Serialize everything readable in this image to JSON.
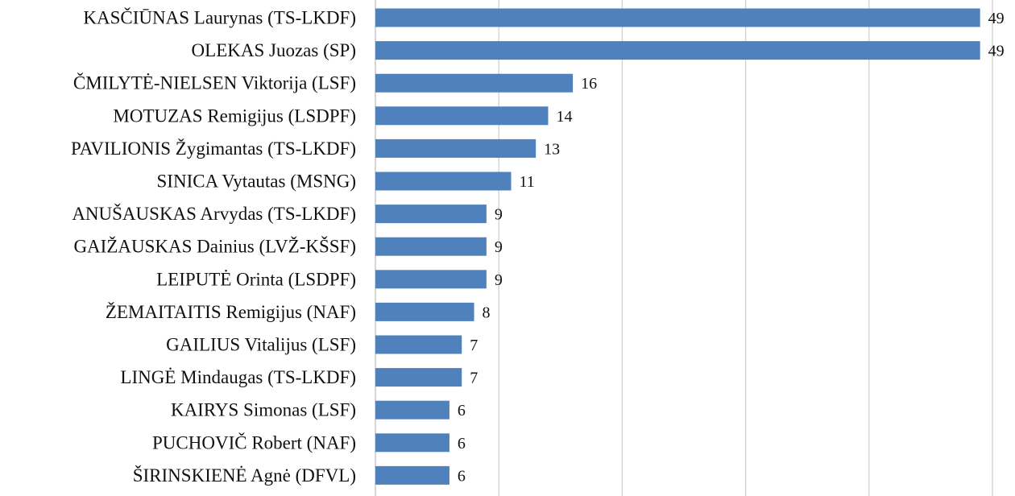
{
  "chart_data": {
    "type": "bar",
    "orientation": "horizontal",
    "categories": [
      "KASČIŪNAS Laurynas (TS-LKDF)",
      "OLEKAS Juozas (SP)",
      "ČMILYTĖ-NIELSEN Viktorija (LSF)",
      "MOTUZAS Remigijus (LSDPF)",
      "PAVILIONIS Žygimantas (TS-LKDF)",
      "SINICA Vytautas (MSNG)",
      "ANUŠAUSKAS Arvydas (TS-LKDF)",
      "GAIŽAUSKAS Dainius (LVŽ-KŠSF)",
      "LEIPUTĖ Orinta (LSDPF)",
      "ŽEMAITAITIS Remigijus (NAF)",
      "GAILIUS Vitalijus (LSF)",
      "LINGĖ Mindaugas (TS-LKDF)",
      "KAIRYS Simonas (LSF)",
      "PUCHOVIČ Robert (NAF)",
      "ŠIRINSKIENĖ Agnė (DFVL)"
    ],
    "values": [
      49,
      49,
      16,
      14,
      13,
      11,
      9,
      9,
      9,
      8,
      7,
      7,
      6,
      6,
      6
    ],
    "data_labels": [
      "49",
      "49",
      "16",
      "14",
      "13",
      "11",
      "9",
      "9",
      "9",
      "8",
      "7",
      "7",
      "6",
      "6",
      "6"
    ],
    "xlim": [
      0,
      50
    ],
    "x_gridlines": [
      0,
      10,
      20,
      30,
      40,
      50
    ],
    "tick_labels_shown": false,
    "grid": true,
    "legend": "none",
    "title": "",
    "xlabel": "",
    "ylabel": "",
    "colors": {
      "bar": "#4f81bd",
      "grid": "#d0d0d0",
      "text": "#111111"
    }
  }
}
